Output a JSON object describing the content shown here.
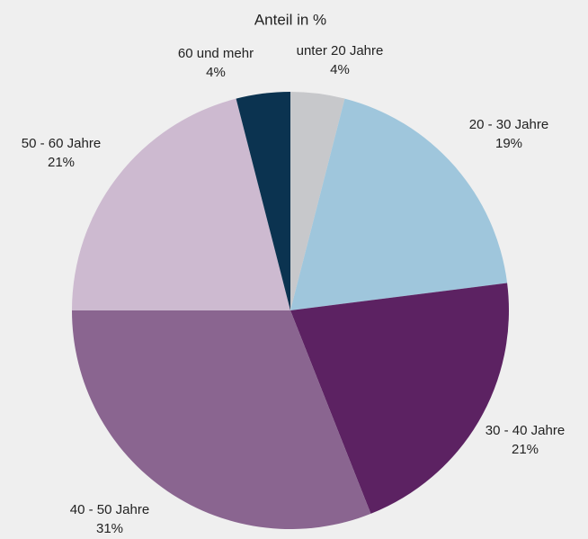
{
  "chart_data": {
    "type": "pie",
    "title": "Anteil in %",
    "categories": [
      "unter 20 Jahre",
      "20 - 30 Jahre",
      "30 - 40 Jahre",
      "40 - 50 Jahre",
      "50 - 60 Jahre",
      "60 und mehr"
    ],
    "values": [
      4,
      19,
      21,
      31,
      21,
      4
    ],
    "value_labels": [
      "4%",
      "19%",
      "21%",
      "31%",
      "21%",
      "4%"
    ],
    "colors": [
      "#c7c8cb",
      "#9fc6dc",
      "#5c2262",
      "#8a6590",
      "#cdbad0",
      "#0b3350"
    ]
  }
}
